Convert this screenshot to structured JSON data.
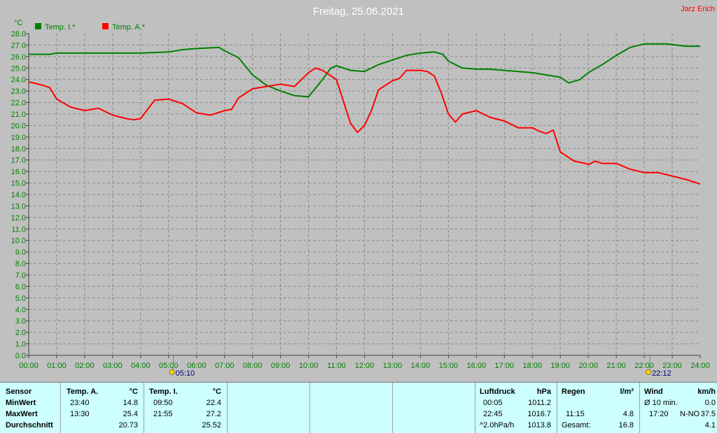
{
  "header": {
    "title": "Freitag, 25.06.2021",
    "author": "Jarz Erich"
  },
  "chart_data": {
    "type": "line",
    "title": "Freitag, 25.06.2021",
    "ylabel": "°C",
    "ylim": [
      0,
      28
    ],
    "xlim": [
      0,
      24
    ],
    "grid": true,
    "legend_position": "top-left",
    "y_ticks": [
      "0.0",
      "1.0",
      "2.0",
      "3.0",
      "4.0",
      "5.0",
      "6.0",
      "7.0",
      "8.0",
      "9.0",
      "10.0",
      "11.0",
      "12.0",
      "13.0",
      "14.0",
      "15.0",
      "16.0",
      "17.0",
      "18.0",
      "19.0",
      "20.0",
      "21.0",
      "22.0",
      "23.0",
      "24.0",
      "25.0",
      "26.0",
      "27.0",
      "28.0"
    ],
    "x_ticks": [
      "00:00",
      "01:00",
      "02:00",
      "03:00",
      "04:00",
      "05:00",
      "06:00",
      "07:00",
      "08:00",
      "09:00",
      "10:00",
      "11:00",
      "12:00",
      "13:00",
      "14:00",
      "15:00",
      "16:00",
      "17:00",
      "18:00",
      "19:00",
      "20:00",
      "21:00",
      "22:00",
      "23:00",
      "24:00"
    ],
    "markers": [
      {
        "label": "05:10",
        "hour": 5.17,
        "icon": "sunrise-icon"
      },
      {
        "label": "22:12",
        "hour": 22.2,
        "icon": "sunset-icon"
      }
    ],
    "series": [
      {
        "name": "Temp. I.*",
        "color": "#008000",
        "x": [
          0,
          0.75,
          1,
          2,
          3,
          4,
          5,
          5.5,
          6,
          6.8,
          7,
          7.5,
          8,
          8.5,
          9,
          9.5,
          10,
          10.5,
          10.8,
          11,
          11.5,
          12,
          12.5,
          13,
          13.5,
          14,
          14.5,
          14.8,
          15,
          15.5,
          16,
          16.5,
          17,
          17.5,
          18,
          18.5,
          19,
          19.3,
          19.7,
          20,
          20.5,
          21,
          21.5,
          22,
          22.3,
          22.8,
          23.5,
          24
        ],
        "y": [
          26.2,
          26.2,
          26.3,
          26.3,
          26.3,
          26.3,
          26.4,
          26.6,
          26.7,
          26.8,
          26.5,
          25.9,
          24.4,
          23.5,
          23.0,
          22.6,
          22.5,
          24.0,
          25.0,
          25.2,
          24.8,
          24.7,
          25.3,
          25.7,
          26.1,
          26.3,
          26.4,
          26.2,
          25.6,
          25.0,
          24.9,
          24.9,
          24.8,
          24.7,
          24.6,
          24.4,
          24.2,
          23.7,
          24.0,
          24.6,
          25.3,
          26.1,
          26.8,
          27.1,
          27.1,
          27.1,
          26.9,
          26.9
        ]
      },
      {
        "name": "Temp. A.*",
        "color": "#ff0000",
        "x": [
          0,
          0.5,
          0.75,
          1,
          1.5,
          2,
          2.25,
          2.5,
          3,
          3.5,
          3.75,
          4,
          4.25,
          4.5,
          5,
          5.5,
          6,
          6.5,
          7,
          7.25,
          7.5,
          8,
          8.5,
          9,
          9.5,
          10,
          10.25,
          10.5,
          11,
          11.5,
          11.75,
          12,
          12.25,
          12.5,
          13,
          13.25,
          13.5,
          14,
          14.25,
          14.5,
          14.75,
          15,
          15.25,
          15.5,
          16,
          16.5,
          17,
          17.5,
          18,
          18.25,
          18.5,
          18.75,
          19,
          19.5,
          19.9,
          20,
          20.25,
          20.5,
          21,
          21.5,
          22,
          22.5,
          23,
          23.5,
          24
        ],
        "y": [
          23.8,
          23.5,
          23.3,
          22.3,
          21.6,
          21.3,
          21.4,
          21.5,
          20.9,
          20.6,
          20.5,
          20.6,
          21.4,
          22.2,
          22.3,
          21.9,
          21.1,
          20.9,
          21.3,
          21.4,
          22.4,
          23.2,
          23.4,
          23.6,
          23.4,
          24.6,
          25.0,
          24.8,
          24.0,
          20.2,
          19.4,
          20.0,
          21.3,
          23.1,
          23.9,
          24.1,
          24.8,
          24.8,
          24.7,
          24.3,
          22.8,
          21.0,
          20.3,
          21.0,
          21.3,
          20.7,
          20.4,
          19.8,
          19.8,
          19.5,
          19.3,
          19.6,
          17.7,
          16.9,
          16.7,
          16.6,
          16.9,
          16.7,
          16.7,
          16.2,
          15.9,
          15.9,
          15.6,
          15.3,
          14.9
        ]
      }
    ]
  },
  "table": {
    "rows": [
      "Sensor",
      "MinWert",
      "MaxWert",
      "Durchschnitt"
    ],
    "temp_a": {
      "header": "Temp. A.",
      "unit": "°C",
      "min_time": "23:40",
      "min": "14.8",
      "max_time": "13:30",
      "max": "25.4",
      "avg": "20.73"
    },
    "temp_i": {
      "header": "Temp. I.",
      "unit": "°C",
      "min_time": "09:50",
      "min": "22.4",
      "max_time": "21:55",
      "max": "27.2",
      "avg": "25.52"
    },
    "luftdruck": {
      "header": "Luftdruck",
      "unit": "hPa",
      "min_time": "00:05",
      "min": "1011.2",
      "max_time": "22:45",
      "max": "1016.7",
      "trend_label": "^2.0hPa/h",
      "trend": "1013.8"
    },
    "regen": {
      "header": "Regen",
      "unit": "l/m²",
      "time": "11:15",
      "value": "4.8",
      "total_label": "Gesamt:",
      "total": "16.8"
    },
    "wind": {
      "header": "Wind",
      "unit": "km/h",
      "avg_label": "Ø 10 min.",
      "avg": "0.0",
      "max_time": "17:20",
      "max_dir": "N-NO",
      "max": "37.5",
      "last": "4.1"
    }
  }
}
